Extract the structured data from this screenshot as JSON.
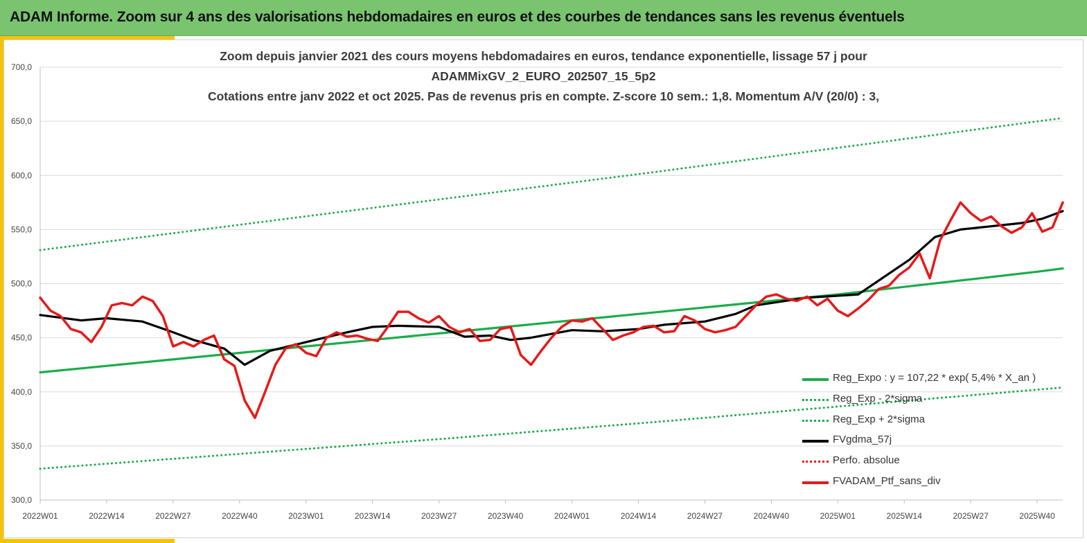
{
  "header": {
    "title": "ADAM Informe. Zoom sur 4 ans des valorisations hebdomadaires en euros et des courbes de tendances sans les revenus éventuels"
  },
  "colors": {
    "header_bg": "#7ac470",
    "accent": "#f5c400",
    "green_line": "#1aac4a",
    "black_line": "#000000",
    "red_line": "#e61919",
    "grid": "#d9d9d9"
  },
  "chart_data": {
    "type": "line",
    "title_lines": [
      "Zoom depuis janvier 2021 des cours moyens hebdomadaires  en euros, tendance exponentielle, lissage 57 j pour",
      "ADAMMixGV_2_EURO_202507_15_5p2",
      "Cotations  entre janv 2022 et oct 2025. Pas de revenus pris en compte. Z-score 10 sem.: 1,8. Momentum A/V (20/0) : 3,"
    ],
    "ylim": [
      300,
      700
    ],
    "yticks": [
      "300,0",
      "350,0",
      "400,0",
      "450,0",
      "500,0",
      "550,0",
      "600,0",
      "650,0",
      "700,0"
    ],
    "xticks": [
      "2022W01",
      "2022W14",
      "2022W27",
      "2022W40",
      "2023W01",
      "2023W14",
      "2023W27",
      "2023W40",
      "2024W01",
      "2024W14",
      "2024W27",
      "2024W40",
      "2025W01",
      "2025W14",
      "2025W27",
      "2025W40"
    ],
    "x_range_weeks": [
      0,
      200
    ],
    "grid": "horizontal",
    "legend_position": "bottom-right",
    "legend": [
      {
        "label": "Reg_Expo : y = 107,22 * exp( 5,4% *  X_an )",
        "color": "#1aac4a",
        "style": "solid"
      },
      {
        "label": "Reg_Exp - 2*sigma",
        "color": "#1aac4a",
        "style": "dotted"
      },
      {
        "label": "Reg_Exp + 2*sigma",
        "color": "#1aac4a",
        "style": "dotted"
      },
      {
        "label": "FVgdma_57j",
        "color": "#000000",
        "style": "solid"
      },
      {
        "label": "Perfo. absolue",
        "color": "#e61919",
        "style": "dotted"
      },
      {
        "label": "FVADAM_Ptf_sans_div",
        "color": "#e61919",
        "style": "solid"
      }
    ],
    "series": [
      {
        "name": "Reg_Expo : y = 107,22 * exp( 5,4% *  X_an )",
        "color": "#1aac4a",
        "style": "solid",
        "x": [
          0,
          13,
          26,
          39,
          52,
          65,
          78,
          91,
          104,
          117,
          130,
          143,
          156,
          169,
          182,
          195,
          200
        ],
        "y": [
          418,
          424,
          430,
          436,
          442,
          448,
          454,
          460,
          466,
          472,
          478,
          484,
          490,
          497,
          504,
          511,
          514
        ]
      },
      {
        "name": "Reg_Exp - 2*sigma",
        "color": "#1aac4a",
        "style": "dotted",
        "x": [
          0,
          40,
          80,
          120,
          160,
          200
        ],
        "y": [
          329,
          343,
          357,
          372,
          388,
          404
        ]
      },
      {
        "name": "Reg_Exp + 2*sigma",
        "color": "#1aac4a",
        "style": "dotted",
        "x": [
          0,
          40,
          80,
          120,
          160,
          200
        ],
        "y": [
          531,
          555,
          579,
          603,
          628,
          653
        ]
      },
      {
        "name": "FVgdma_57j",
        "color": "#000000",
        "style": "solid",
        "x": [
          0,
          8,
          13,
          20,
          26,
          30,
          36,
          40,
          45,
          52,
          60,
          65,
          70,
          78,
          83,
          88,
          92,
          96,
          104,
          110,
          117,
          122,
          130,
          136,
          140,
          150,
          160,
          170,
          175,
          180,
          186,
          192,
          196,
          200
        ],
        "y": [
          471,
          466,
          468,
          465,
          455,
          448,
          440,
          425,
          438,
          446,
          455,
          460,
          461,
          460,
          451,
          452,
          448,
          450,
          457,
          456,
          458,
          462,
          465,
          472,
          480,
          487,
          490,
          522,
          543,
          550,
          553,
          556,
          560,
          567
        ]
      },
      {
        "name": "FVADAM_Ptf_sans_div",
        "color": "#e61919",
        "style": "solid",
        "x": [
          0,
          2,
          4,
          6,
          8,
          10,
          12,
          14,
          16,
          18,
          20,
          22,
          24,
          26,
          28,
          30,
          32,
          34,
          36,
          38,
          40,
          42,
          44,
          46,
          48,
          50,
          52,
          54,
          56,
          58,
          60,
          62,
          64,
          66,
          68,
          70,
          72,
          74,
          76,
          78,
          80,
          82,
          84,
          86,
          88,
          90,
          92,
          94,
          96,
          98,
          100,
          102,
          104,
          106,
          108,
          110,
          112,
          114,
          116,
          118,
          120,
          122,
          124,
          126,
          128,
          130,
          132,
          134,
          136,
          138,
          140,
          142,
          144,
          146,
          148,
          150,
          152,
          154,
          156,
          158,
          160,
          162,
          164,
          166,
          168,
          170,
          172,
          174,
          176,
          178,
          180,
          182,
          184,
          186,
          188,
          190,
          192,
          194,
          196,
          198,
          200
        ],
        "y": [
          487,
          475,
          470,
          458,
          455,
          446,
          460,
          480,
          482,
          480,
          488,
          484,
          470,
          442,
          446,
          442,
          448,
          452,
          430,
          424,
          392,
          376,
          400,
          425,
          440,
          444,
          436,
          433,
          450,
          455,
          451,
          452,
          449,
          447,
          460,
          474,
          474,
          468,
          464,
          470,
          460,
          455,
          458,
          447,
          448,
          458,
          460,
          434,
          425,
          438,
          450,
          460,
          466,
          465,
          468,
          458,
          448,
          452,
          455,
          460,
          461,
          455,
          456,
          470,
          466,
          458,
          455,
          457,
          460,
          470,
          480,
          488,
          490,
          486,
          484,
          488,
          480,
          486,
          475,
          470,
          477,
          485,
          495,
          498,
          508,
          515,
          528,
          505,
          540,
          558,
          575,
          565,
          558,
          562,
          553,
          547,
          552,
          565,
          548,
          552,
          575
        ]
      }
    ]
  }
}
